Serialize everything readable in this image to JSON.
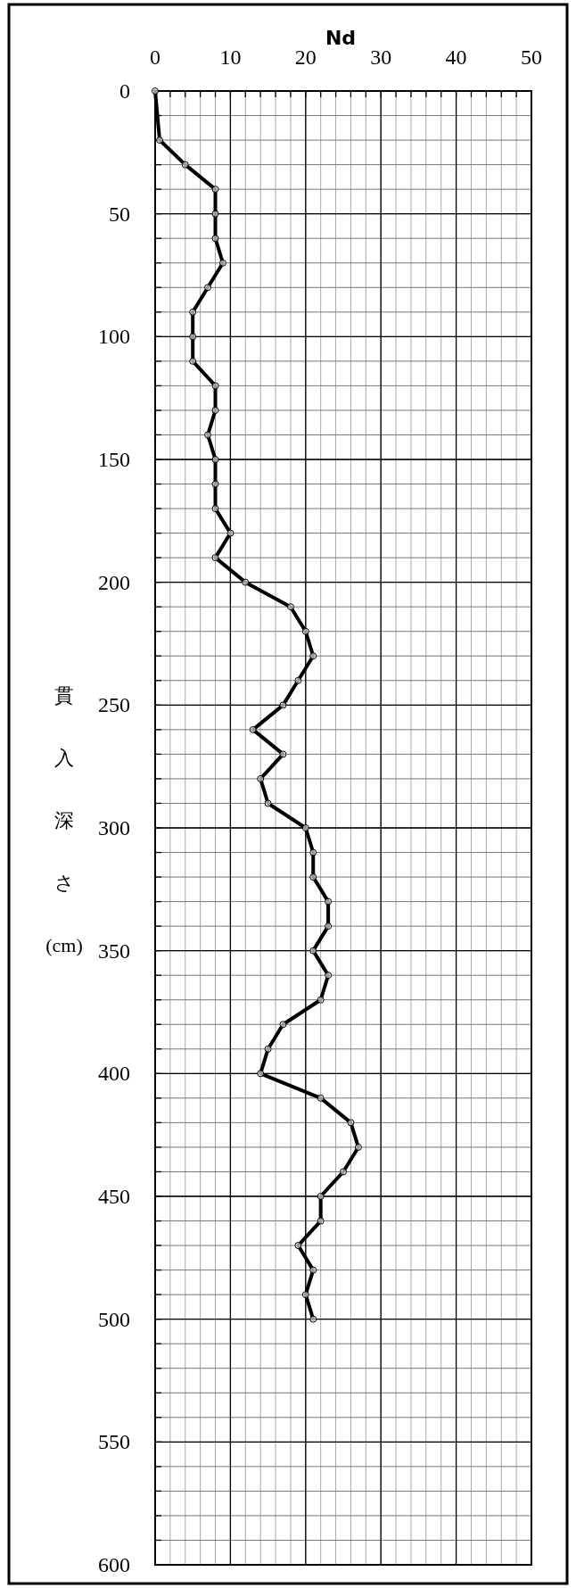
{
  "chart_data": {
    "type": "line",
    "xlabel": "Nd",
    "ylabel": "貫入深さ(cm)",
    "x": [
      0,
      0.6,
      4,
      8,
      8,
      8,
      9,
      7,
      5,
      5,
      5,
      8,
      8,
      7,
      8,
      8,
      8,
      10,
      8,
      12,
      18,
      20,
      21,
      19,
      17,
      13,
      17,
      14,
      15,
      20,
      21,
      21,
      23,
      23,
      21,
      23,
      22,
      17,
      15,
      14,
      22,
      26,
      27,
      25,
      22,
      22,
      19,
      21,
      20,
      21
    ],
    "series": [
      {
        "color": "#000000",
        "values": [
          0,
          20,
          30,
          40,
          50,
          60,
          70,
          80,
          90,
          100,
          110,
          120,
          130,
          140,
          150,
          160,
          170,
          180,
          190,
          200,
          210,
          220,
          230,
          240,
          250,
          260,
          270,
          280,
          290,
          300,
          310,
          320,
          330,
          340,
          350,
          360,
          370,
          380,
          390,
          400,
          410,
          420,
          430,
          440,
          450,
          460,
          470,
          480,
          490,
          500
        ]
      }
    ],
    "xlim": [
      0,
      50
    ],
    "xticks": [
      0,
      10,
      20,
      30,
      40,
      50
    ],
    "ylim": [
      600,
      0
    ],
    "yticks": [
      0,
      50,
      100,
      150,
      200,
      250,
      300,
      350,
      400,
      450,
      500,
      550,
      600
    ],
    "grid": true,
    "marker": "circle",
    "line_style": "solid"
  }
}
